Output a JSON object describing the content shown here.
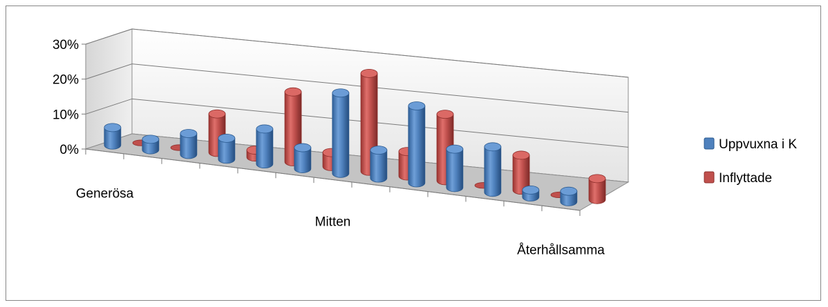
{
  "chart_data": {
    "type": "bar",
    "style": "3d-cylinder",
    "categories": [
      "Generösa",
      "",
      "",
      "",
      "",
      "",
      "Mitten",
      "",
      "",
      "",
      "",
      "",
      "Återhållsamma"
    ],
    "y_ticks": [
      "0%",
      "10%",
      "20%",
      "30%"
    ],
    "ylim": [
      0,
      30
    ],
    "grid": true,
    "legend_position": "right",
    "series": [
      {
        "name": "Uppvuxna i K",
        "color": "#4f81bd",
        "values": [
          5,
          3,
          6,
          6,
          10,
          6,
          23,
          8,
          22,
          11,
          13,
          2,
          3
        ]
      },
      {
        "name": "Inflyttade",
        "color": "#c0504d",
        "values": [
          0,
          0,
          11,
          2,
          20,
          4,
          28,
          7,
          19,
          0,
          10,
          0,
          6
        ]
      }
    ]
  }
}
